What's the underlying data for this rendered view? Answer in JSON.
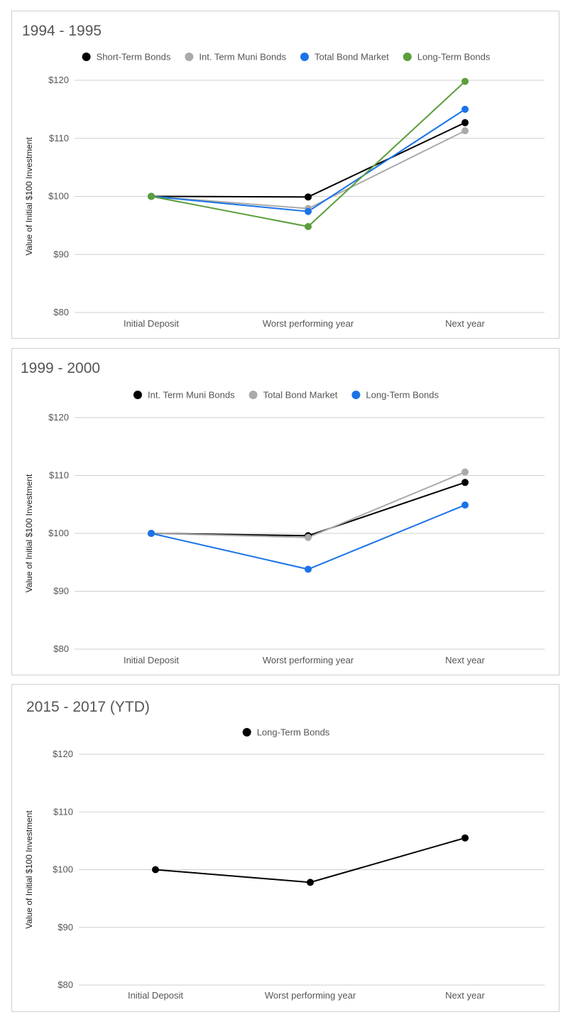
{
  "chart_data": [
    {
      "type": "line",
      "title": "1994 - 1995",
      "ylabel": "Value of Initial $100 Investment",
      "xlabel": "",
      "categories": [
        "Initial Deposit",
        "Worst performing year",
        "Next year"
      ],
      "yticks": [
        "$80",
        "$90",
        "$100",
        "$110",
        "$120"
      ],
      "ylim": [
        80,
        120
      ],
      "grid": true,
      "legend": "top",
      "series": [
        {
          "name": "Short-Term Bonds",
          "color": "#000000",
          "values": [
            100,
            99.9,
            112.7
          ]
        },
        {
          "name": "Int. Term Muni Bonds",
          "color": "#aaaaaa",
          "values": [
            100,
            97.9,
            111.3
          ]
        },
        {
          "name": "Total Bond Market",
          "color": "#1a73e8",
          "values": [
            100,
            97.4,
            115.0
          ]
        },
        {
          "name": "Long-Term Bonds",
          "color": "#5a9e3a",
          "values": [
            100,
            94.8,
            119.8
          ]
        }
      ]
    },
    {
      "type": "line",
      "title": "1999 - 2000",
      "ylabel": "Value of Initial $100 Investment",
      "xlabel": "",
      "categories": [
        "Initial Deposit",
        "Worst performing year",
        "Next year"
      ],
      "yticks": [
        "$80",
        "$90",
        "$100",
        "$110",
        "$120"
      ],
      "ylim": [
        80,
        120
      ],
      "grid": true,
      "legend": "top",
      "series": [
        {
          "name": "Int. Term Muni Bonds",
          "color": "#000000",
          "values": [
            100,
            99.6,
            108.8
          ]
        },
        {
          "name": "Total Bond Market",
          "color": "#aaaaaa",
          "values": [
            100,
            99.3,
            110.6
          ]
        },
        {
          "name": "Long-Term Bonds",
          "color": "#1a73e8",
          "values": [
            100,
            93.8,
            104.9
          ]
        }
      ]
    },
    {
      "type": "line",
      "title": "2015 - 2017 (YTD)",
      "ylabel": "Value of Initial $100 Investment",
      "xlabel": "",
      "categories": [
        "Initial Deposit",
        "Worst performing year",
        "Next year"
      ],
      "yticks": [
        "$80",
        "$90",
        "$100",
        "$110",
        "$120"
      ],
      "ylim": [
        80,
        120
      ],
      "grid": true,
      "legend": "top",
      "series": [
        {
          "name": "Long-Term Bonds",
          "color": "#000000",
          "values": [
            100,
            97.8,
            105.5
          ]
        }
      ]
    }
  ]
}
